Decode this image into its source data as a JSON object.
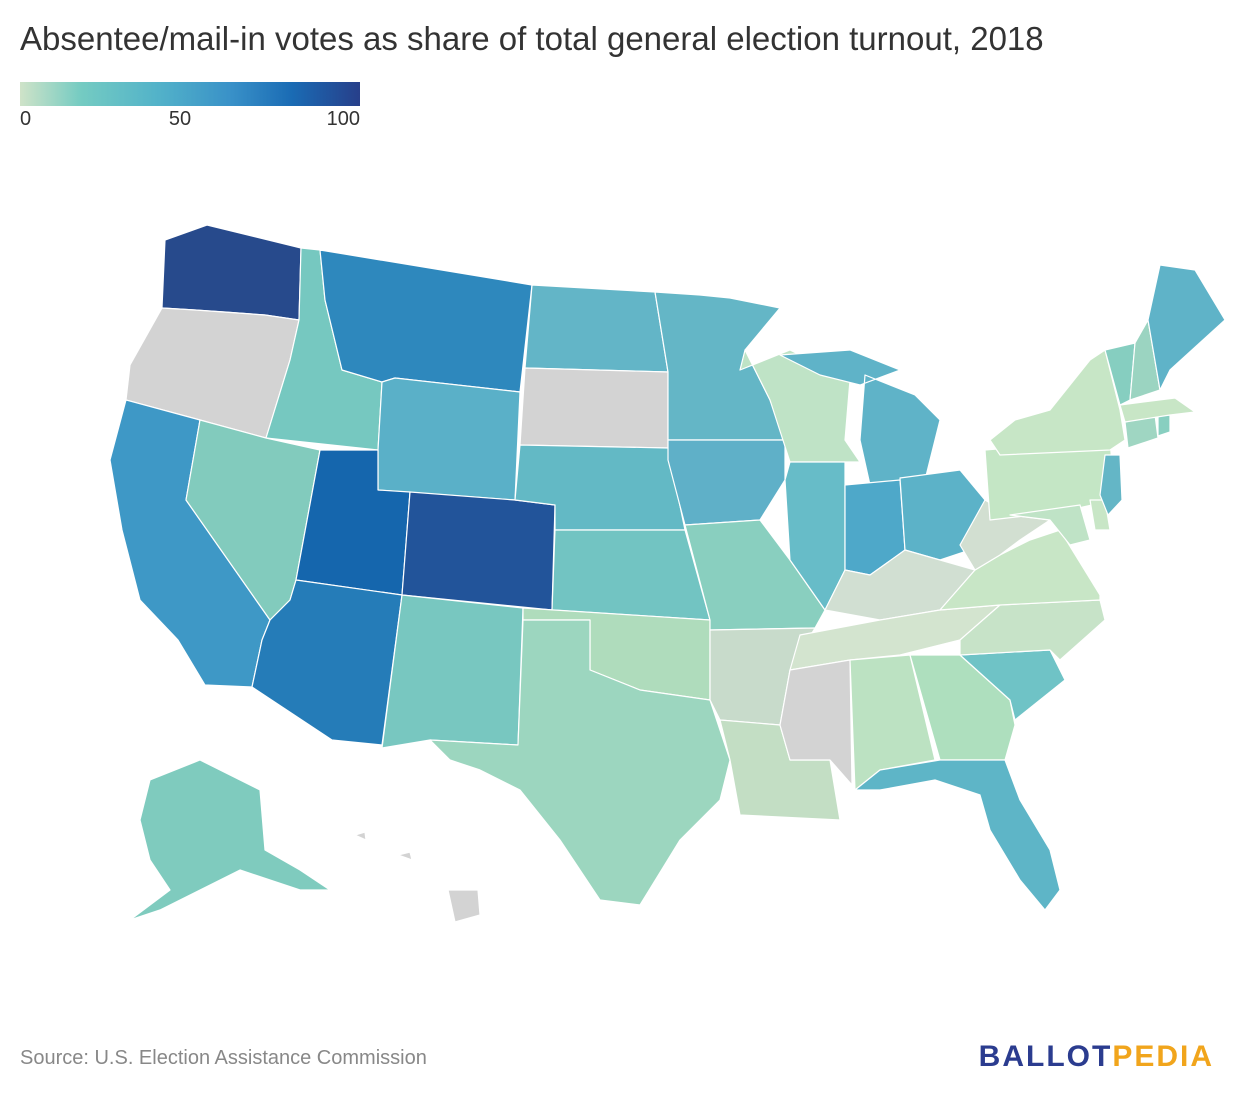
{
  "title": "Absentee/mail-in votes as share of total general election turnout, 2018",
  "legend": {
    "min_label": "0",
    "mid_label": "50",
    "max_label": "100",
    "colors": [
      "#cfe3c8",
      "#74cbc2",
      "#53b3c9",
      "#3991c8",
      "#1a6bb4",
      "#273f8a"
    ]
  },
  "no_data_color": "#d3d3d3",
  "states": [
    {
      "name": "Washington",
      "color": "#274a8c"
    },
    {
      "name": "Oregon",
      "color": "#d3d3d3"
    },
    {
      "name": "California",
      "color": "#3e98c6"
    },
    {
      "name": "Idaho",
      "color": "#76c8c0"
    },
    {
      "name": "Nevada",
      "color": "#82cbbd"
    },
    {
      "name": "Montana",
      "color": "#2e88bd"
    },
    {
      "name": "Wyoming",
      "color": "#5ab0c8"
    },
    {
      "name": "Utah",
      "color": "#1566ad"
    },
    {
      "name": "Arizona",
      "color": "#257cb8"
    },
    {
      "name": "Colorado",
      "color": "#22549a"
    },
    {
      "name": "New Mexico",
      "color": "#78c7c0"
    },
    {
      "name": "North Dakota",
      "color": "#63b5c7"
    },
    {
      "name": "South Dakota",
      "color": "#d3d3d3"
    },
    {
      "name": "Nebraska",
      "color": "#63b9c5"
    },
    {
      "name": "Kansas",
      "color": "#72c4c2"
    },
    {
      "name": "Oklahoma",
      "color": "#afdcbc"
    },
    {
      "name": "Texas",
      "color": "#9cd6bf"
    },
    {
      "name": "Minnesota",
      "color": "#64b6c6"
    },
    {
      "name": "Iowa",
      "color": "#5fb0c8"
    },
    {
      "name": "Missouri",
      "color": "#89cfbf"
    },
    {
      "name": "Arkansas",
      "color": "#c8dbcb"
    },
    {
      "name": "Louisiana",
      "color": "#c3dec4"
    },
    {
      "name": "Wisconsin",
      "color": "#bfe3c6"
    },
    {
      "name": "Illinois",
      "color": "#67bcc8"
    },
    {
      "name": "Michigan",
      "color": "#5fb3c8"
    },
    {
      "name": "Indiana",
      "color": "#4ea8c9"
    },
    {
      "name": "Ohio",
      "color": "#5cb2c8"
    },
    {
      "name": "Kentucky",
      "color": "#d1dfd2"
    },
    {
      "name": "Tennessee",
      "color": "#d3e4cf"
    },
    {
      "name": "Mississippi",
      "color": "#d3d3d3"
    },
    {
      "name": "Alabama",
      "color": "#bce2c2"
    },
    {
      "name": "Georgia",
      "color": "#aedfbe"
    },
    {
      "name": "Florida",
      "color": "#5eb5c7"
    },
    {
      "name": "South Carolina",
      "color": "#6fc3c6"
    },
    {
      "name": "North Carolina",
      "color": "#c7e3c8"
    },
    {
      "name": "Virginia",
      "color": "#c8e6c6"
    },
    {
      "name": "West Virginia",
      "color": "#d2dfd1"
    },
    {
      "name": "Pennsylvania",
      "color": "#c4e6c5"
    },
    {
      "name": "New York",
      "color": "#c7e6c6"
    },
    {
      "name": "Maryland",
      "color": "#bfe3c6"
    },
    {
      "name": "Delaware",
      "color": "#c8e6c6"
    },
    {
      "name": "New Jersey",
      "color": "#64b6c6"
    },
    {
      "name": "Connecticut",
      "color": "#9fd6c2"
    },
    {
      "name": "Rhode Island",
      "color": "#88cfc0"
    },
    {
      "name": "Massachusetts",
      "color": "#c8e6c6"
    },
    {
      "name": "Vermont",
      "color": "#86cec0"
    },
    {
      "name": "New Hampshire",
      "color": "#9bd4c1"
    },
    {
      "name": "Maine",
      "color": "#5fb3c8"
    },
    {
      "name": "Alaska",
      "color": "#7fcbbe"
    },
    {
      "name": "Hawaii",
      "color": "#d3d3d3"
    }
  ],
  "source": "Source: U.S. Election Assistance Commission",
  "brand": {
    "part1": "BALLOT",
    "part2": "PEDIA"
  }
}
